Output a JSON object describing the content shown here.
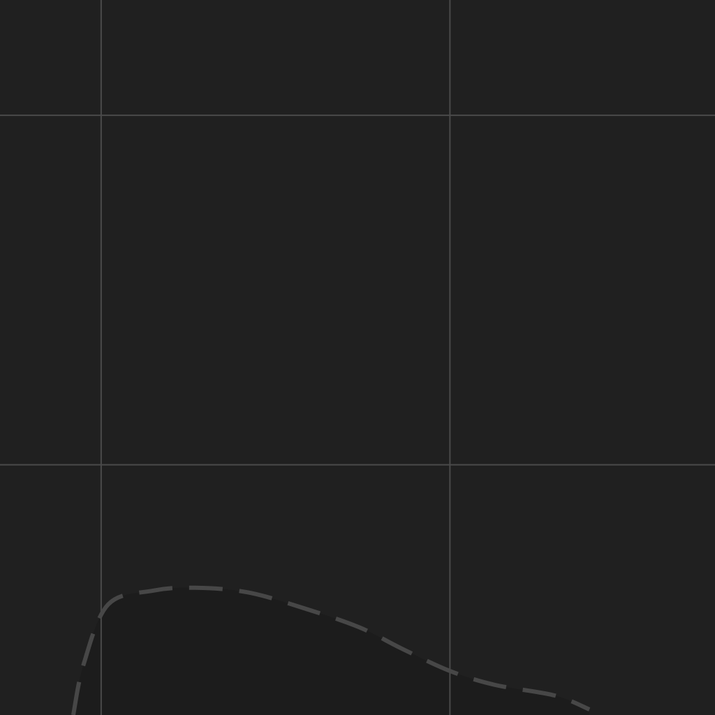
{
  "chart_data": {
    "type": "line",
    "title": "",
    "xlabel": "",
    "ylabel": "",
    "xlim": [
      -0.29,
      1.76
    ],
    "ylim": [
      -0.716,
      1.33
    ],
    "grid": true,
    "grid_x": [
      0,
      1
    ],
    "grid_y": [
      0,
      1
    ],
    "series": [
      {
        "style": "dashed",
        "x": [
          -0.08,
          -0.05,
          0.02,
          0.15,
          0.27,
          0.42,
          0.58,
          0.74,
          0.86,
          1.0,
          1.13,
          1.3,
          1.4
        ],
        "y": [
          -0.716,
          -0.57,
          -0.4,
          -0.36,
          -0.352,
          -0.365,
          -0.41,
          -0.465,
          -0.525,
          -0.59,
          -0.63,
          -0.66,
          -0.7
        ]
      }
    ]
  },
  "colors": {
    "background": "#202020",
    "grid": "#4a4a4a",
    "series": "#474747",
    "area_fill": "#1c1c1c"
  }
}
